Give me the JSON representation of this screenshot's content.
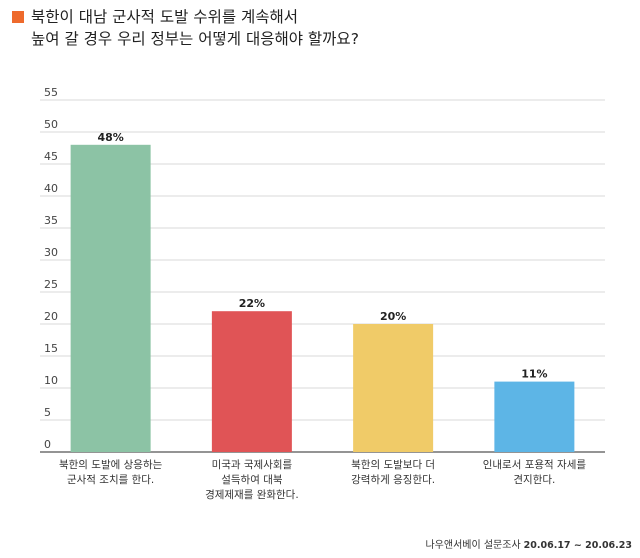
{
  "title": {
    "line1": "북한이 대남 군사적 도발 수위를 계속해서",
    "line2": "높여 갈 경우 우리 정부는 어떻게 대응해야 할까요?"
  },
  "source": {
    "org": "나우앤서베이 설문조사",
    "date": "20.06.17 ~ 20.06.23"
  },
  "chart_data": {
    "type": "bar",
    "categories": [
      [
        "북한의 도발에 상응하는",
        "군사적 조치를 한다."
      ],
      [
        "미국과 국제사회를",
        "설득하여 대북",
        "경제제재를 완화한다."
      ],
      [
        "북한의 도발보다 더",
        "강력하게 응징한다."
      ],
      [
        "인내로서 포용적 자세를",
        "견지한다."
      ]
    ],
    "values": [
      48,
      22,
      20,
      11
    ],
    "data_labels": [
      "48%",
      "22%",
      "20%",
      "11%"
    ],
    "colors": [
      "#8cc3a5",
      "#e05456",
      "#f0cb68",
      "#5db5e6"
    ],
    "ylim": [
      0,
      55
    ],
    "yticks": [
      0,
      5,
      10,
      15,
      20,
      25,
      30,
      35,
      40,
      45,
      50,
      55
    ],
    "grid": true,
    "legend": "none"
  }
}
